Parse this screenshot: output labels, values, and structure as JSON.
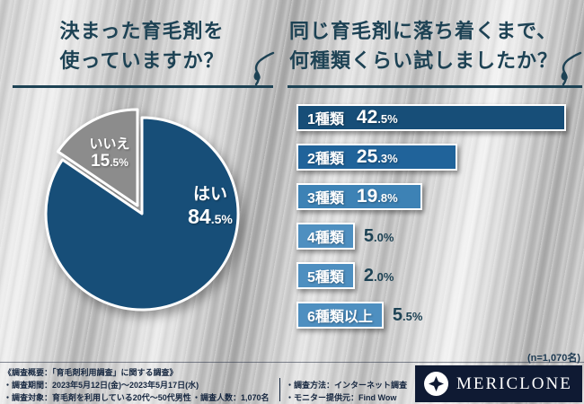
{
  "left_title": {
    "line1": "決まった育毛剤を",
    "line2": "使っていますか？"
  },
  "right_title": {
    "line1": "同じ育毛剤に落ち着くまで、",
    "line2": "何種類くらい試しましたか？"
  },
  "chart_data": [
    {
      "type": "pie",
      "title": "決まった育毛剤を使っていますか？",
      "labels": [
        "はい",
        "いいえ"
      ],
      "values": [
        84.5,
        15.5
      ],
      "value_labels": [
        "84.5%",
        "15.5%"
      ],
      "colors": [
        "#174e78",
        "#8c8c8c"
      ],
      "start_angle": "top",
      "direction": "clockwise",
      "exploded_index": 1
    },
    {
      "type": "bar",
      "title": "同じ育毛剤に落ち着くまで、何種類くらい試しましたか？",
      "orientation": "horizontal",
      "categories": [
        "1種類",
        "2種類",
        "3種類",
        "4種類",
        "5種類",
        "6種類以上"
      ],
      "values": [
        42.5,
        25.3,
        19.8,
        5.0,
        2.0,
        5.5
      ],
      "value_labels": [
        "42.5%",
        "25.3%",
        "19.8%",
        "5.0%",
        "2.0%",
        "5.5%"
      ],
      "colors": [
        "#174e78",
        "#20639a",
        "#3d82b5",
        "#4e8fc0",
        "#4e8fc0",
        "#4e8fc0"
      ],
      "xlim": [
        0,
        45
      ],
      "n_label": "(n=1,070名)"
    }
  ],
  "footer": {
    "overview": "《調査概要：「育毛剤利用調査」に関する調査》",
    "period": "・調査期間：2023年5月12日(金)～2023年5月17日(水)",
    "target": "・調査対象：育毛剤を利用している20代～50代男性",
    "people": "・調査人数：1,070名",
    "method": "・調査方法：インターネット調査",
    "monitor": "・モニター提供元：Find Wow",
    "logo_text": "MERICLONE"
  },
  "theme": {
    "navy": "#1d4254",
    "footer_navy": "#15263f",
    "logo_bg": "#0f1a33",
    "pie_yes": "#174e78",
    "pie_no": "#8c8c8c"
  }
}
